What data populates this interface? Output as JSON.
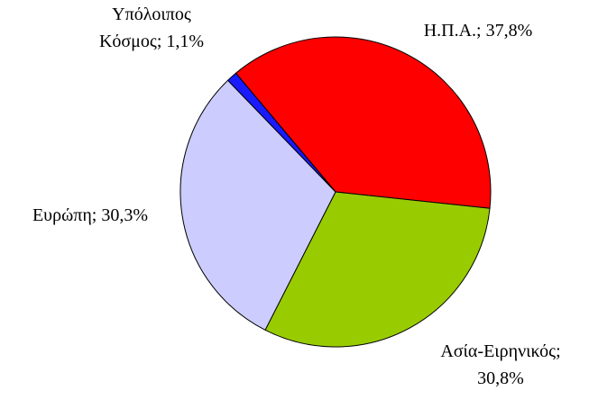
{
  "chart_data": {
    "type": "pie",
    "values": [
      37.8,
      30.8,
      30.3,
      1.1
    ],
    "value_labels": [
      "Η.Π.Α.; 37,8%",
      "Ασία-Ειρηνικός;\n30,8%",
      "Ευρώπη; 30,3%",
      "Υπόλοιπος\nΚόσμος; 1,1%"
    ],
    "colors": [
      "#ff0000",
      "#99cc00",
      "#ccccff",
      "#1a1aff"
    ]
  }
}
